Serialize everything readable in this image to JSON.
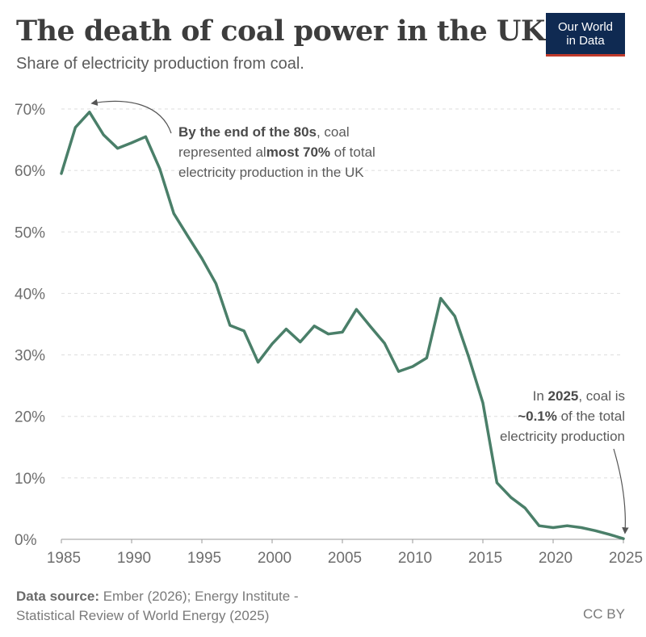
{
  "header": {
    "title": "The death of coal power in the UK",
    "subtitle": "Share of electricity production from coal."
  },
  "logo": {
    "line1": "Our World",
    "line2": "in Data"
  },
  "annotations": {
    "peak": {
      "line1_bold": "By the end of the 80s",
      "line1_rest": ", coal",
      "line2_pre": "represented al",
      "line2_bold": "most 70%",
      "line2_post": " of total",
      "line3": "electricity production in the UK"
    },
    "end": {
      "line1_pre": "In ",
      "line1_bold": "2025",
      "line1_post": ", coal is",
      "line2_bold": "~0.1%",
      "line2_post": " of the total",
      "line3": "electricity production"
    }
  },
  "footer": {
    "source_label": "Data source:",
    "source_line1": " Ember (2026); Energy Institute -",
    "source_line2": "Statistical Review of World Energy (2025)",
    "license": "CC BY"
  },
  "colors": {
    "line": "#4a7f69",
    "grid": "#dddddd",
    "logo_bg": "#0f2a52",
    "logo_accent": "#c0392b"
  },
  "chart_data": {
    "type": "line",
    "title": "The death of coal power in the UK",
    "subtitle": "Share of electricity production from coal.",
    "xlim": [
      1985,
      2025
    ],
    "ylim": [
      0,
      70
    ],
    "x_ticks": [
      "1985",
      "1990",
      "1995",
      "2000",
      "2005",
      "2010",
      "2015",
      "2020",
      "2025"
    ],
    "y_ticks": [
      "0%",
      "10%",
      "20%",
      "30%",
      "40%",
      "50%",
      "60%",
      "70%"
    ],
    "grid": "horizontal dashed",
    "series": [
      {
        "x": [
          1985,
          1986,
          1987,
          1988,
          1989,
          1990,
          1991,
          1992,
          1993,
          1994,
          1995,
          1996,
          1997,
          1998,
          1999,
          2000,
          2001,
          2002,
          2003,
          2004,
          2005,
          2006,
          2007,
          2008,
          2009,
          2010,
          2011,
          2012,
          2013,
          2014,
          2015,
          2016,
          2017,
          2018,
          2019,
          2020,
          2021,
          2022,
          2023,
          2024,
          2025
        ],
        "y": [
          59.5,
          67.0,
          69.5,
          65.8,
          63.6,
          64.5,
          65.5,
          60.3,
          53.0,
          49.3,
          45.7,
          41.6,
          34.8,
          33.9,
          28.8,
          31.8,
          34.2,
          32.1,
          34.7,
          33.4,
          33.7,
          37.4,
          34.6,
          31.9,
          27.3,
          28.1,
          29.5,
          39.2,
          36.3,
          29.6,
          22.2,
          9.2,
          6.8,
          5.1,
          2.2,
          1.9,
          2.2,
          1.9,
          1.4,
          0.8,
          0.1
        ]
      }
    ]
  }
}
